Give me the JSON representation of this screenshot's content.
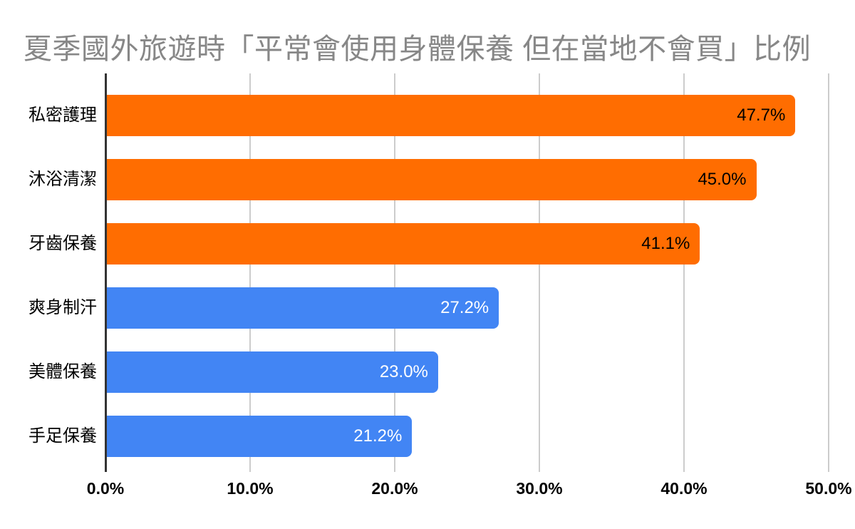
{
  "title": "夏季國外旅遊時「平常會使用身體保養 但在當地不會買」比例",
  "colors": {
    "title_text": "#878787",
    "axis_line": "#333333",
    "gridline": "#cccccc",
    "orange_series": "#FF6D01",
    "blue_series": "#4285F4",
    "label_on_orange": "#000000",
    "label_on_blue": "#ffffff"
  },
  "chart_data": {
    "type": "bar",
    "orientation": "horizontal",
    "title": "夏季國外旅遊時「平常會使用身體保養 但在當地不會買」比例",
    "categories": [
      "私密護理",
      "沐浴清潔",
      "牙齒保養",
      "爽身制汗",
      "美體保養",
      "手足保養"
    ],
    "values": [
      47.7,
      45.0,
      41.1,
      27.2,
      23.0,
      21.2
    ],
    "value_labels": [
      "47.7%",
      "45.0%",
      "41.1%",
      "27.2%",
      "23.0%",
      "21.2%"
    ],
    "bar_colors": [
      "#FF6D01",
      "#FF6D01",
      "#FF6D01",
      "#4285F4",
      "#4285F4",
      "#4285F4"
    ],
    "value_label_colors": [
      "#000000",
      "#000000",
      "#000000",
      "#ffffff",
      "#ffffff",
      "#ffffff"
    ],
    "x_tick_labels": [
      "0.0%",
      "10.0%",
      "20.0%",
      "30.0%",
      "40.0%",
      "50.0%"
    ],
    "x_tick_values": [
      0,
      10,
      20,
      30,
      40,
      50
    ],
    "xlim": [
      0,
      50
    ],
    "xlabel": "",
    "ylabel": "",
    "grid": true,
    "legend": "none"
  }
}
